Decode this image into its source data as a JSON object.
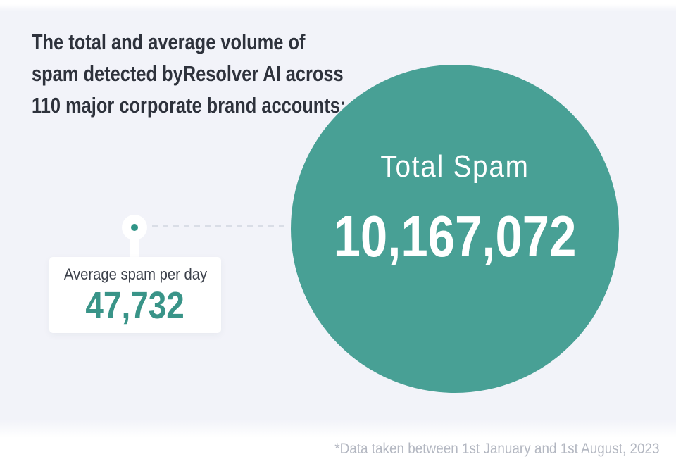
{
  "page": {
    "footer_note": "*Data taken between 1st January and 1st August, 2023"
  },
  "heading": {
    "lines": [
      "The total and average volume of",
      "spam detected byResolver AI across",
      "110 major corporate brand accounts:"
    ]
  },
  "total_bubble": {
    "label": "Total Spam",
    "value": "10,167,072"
  },
  "average_card": {
    "label": "Average spam per day",
    "value": "47,732"
  },
  "colors": {
    "background_lavender": "#f2f3f9",
    "bubble_teal": "#48a095",
    "accent_teal": "#399488",
    "marker_dot_teal": "#2f9486",
    "heading_text": "#2e323c",
    "card_label_text": "#3c414b",
    "footnote_text": "#b3b7c1",
    "dash_gray": "#d9dde6",
    "card_background": "#ffffff"
  },
  "chart_data": {
    "type": "bubble",
    "title": "The total and average volume of spam detected byResolver AI across 110 major corporate brand accounts:",
    "series": [
      {
        "name": "Total Spam",
        "value": 10167072
      },
      {
        "name": "Average spam per day",
        "value": 47732
      }
    ],
    "annotations": [
      "*Data taken between 1st January and 1st August, 2023"
    ],
    "layout_hints": {
      "total_shown_as": "large teal circle, right side",
      "average_shown_as": "white callout card connected by dashed leader line with dot marker",
      "legend_position": "none",
      "grid": false
    }
  }
}
